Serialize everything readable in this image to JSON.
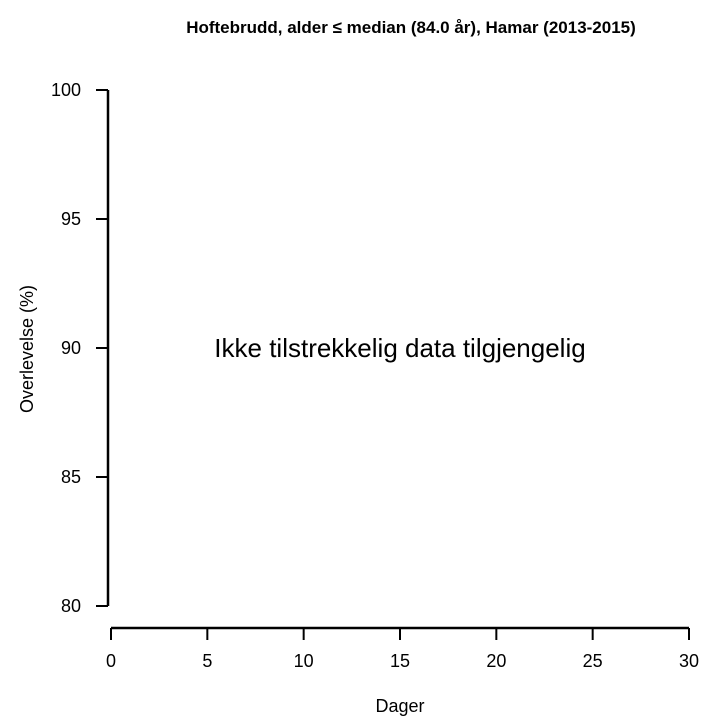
{
  "chart_data": {
    "type": "line",
    "title": "Hoftebrudd, alder ≤ median (84.0 år), Hamar (2013-2015)",
    "xlabel": "Dager",
    "ylabel": "Overlevelse (%)",
    "xlim": [
      0,
      30
    ],
    "ylim": [
      80,
      100
    ],
    "x_ticks": [
      0,
      5,
      10,
      15,
      20,
      25,
      30
    ],
    "y_ticks": [
      80,
      85,
      90,
      95,
      100
    ],
    "series": [],
    "annotation": "Ikke tilstrekkelig data tilgjengelig",
    "grid": false
  }
}
